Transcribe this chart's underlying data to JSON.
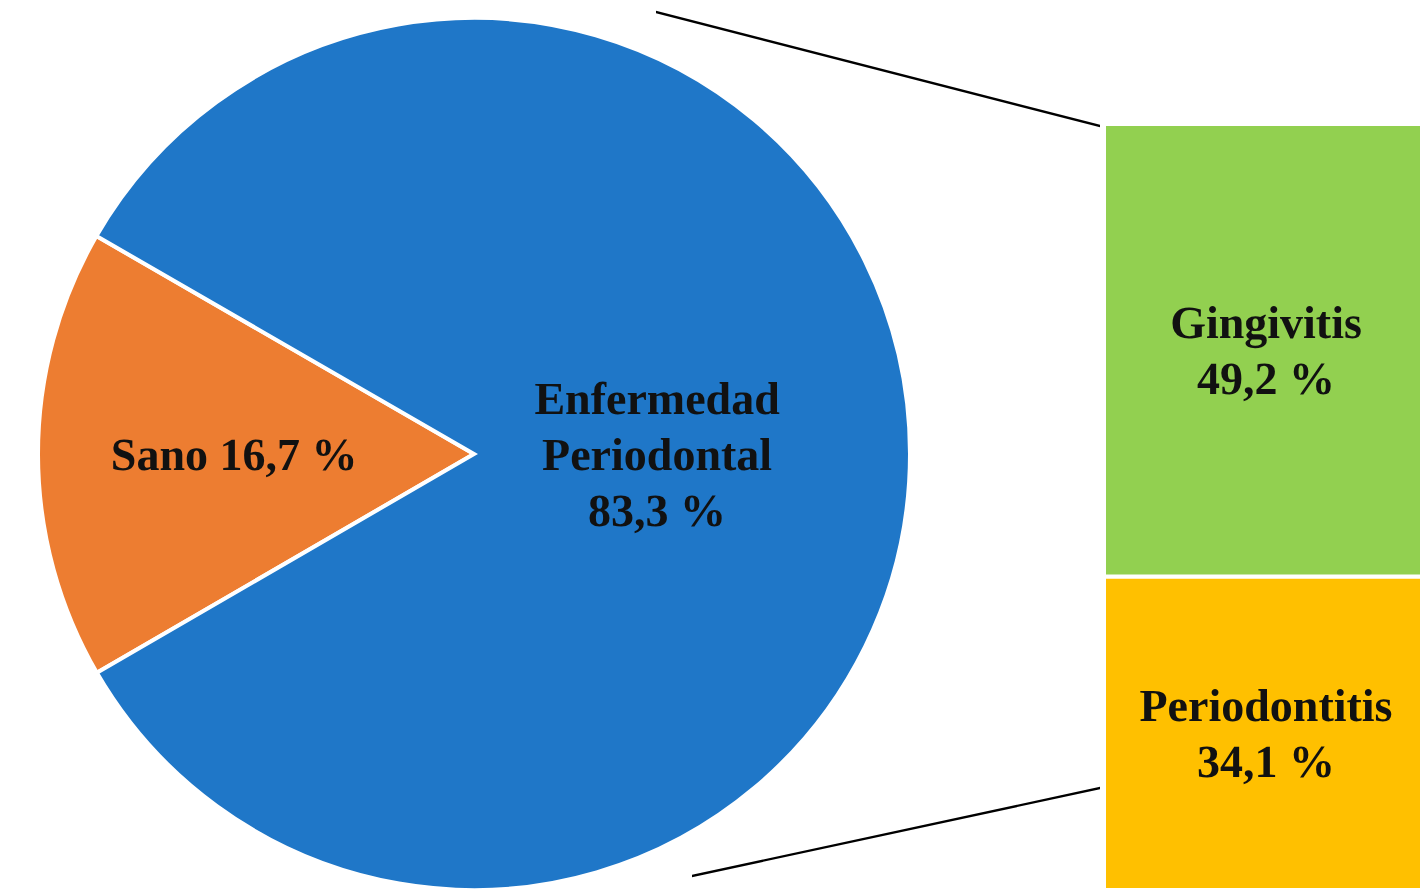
{
  "chart_data": [
    {
      "type": "pie",
      "categories": [
        "Sano",
        "Enfermedad Periodontal"
      ],
      "values": [
        16.7,
        83.3
      ],
      "colors": [
        "#ed7d31",
        "#1f77c8"
      ],
      "value_labels": [
        "16,7 %",
        "83,3 %"
      ]
    },
    {
      "type": "bar",
      "stacked": true,
      "categories": [
        null
      ],
      "series": [
        {
          "name": "Periodontitis",
          "color": "#ffc000",
          "values": [
            34.1
          ],
          "value_labels": [
            "34,1 %"
          ]
        },
        {
          "name": "Gingivitis",
          "color": "#92d050",
          "values": [
            49.2
          ],
          "value_labels": [
            "49,2 %"
          ]
        }
      ]
    }
  ]
}
